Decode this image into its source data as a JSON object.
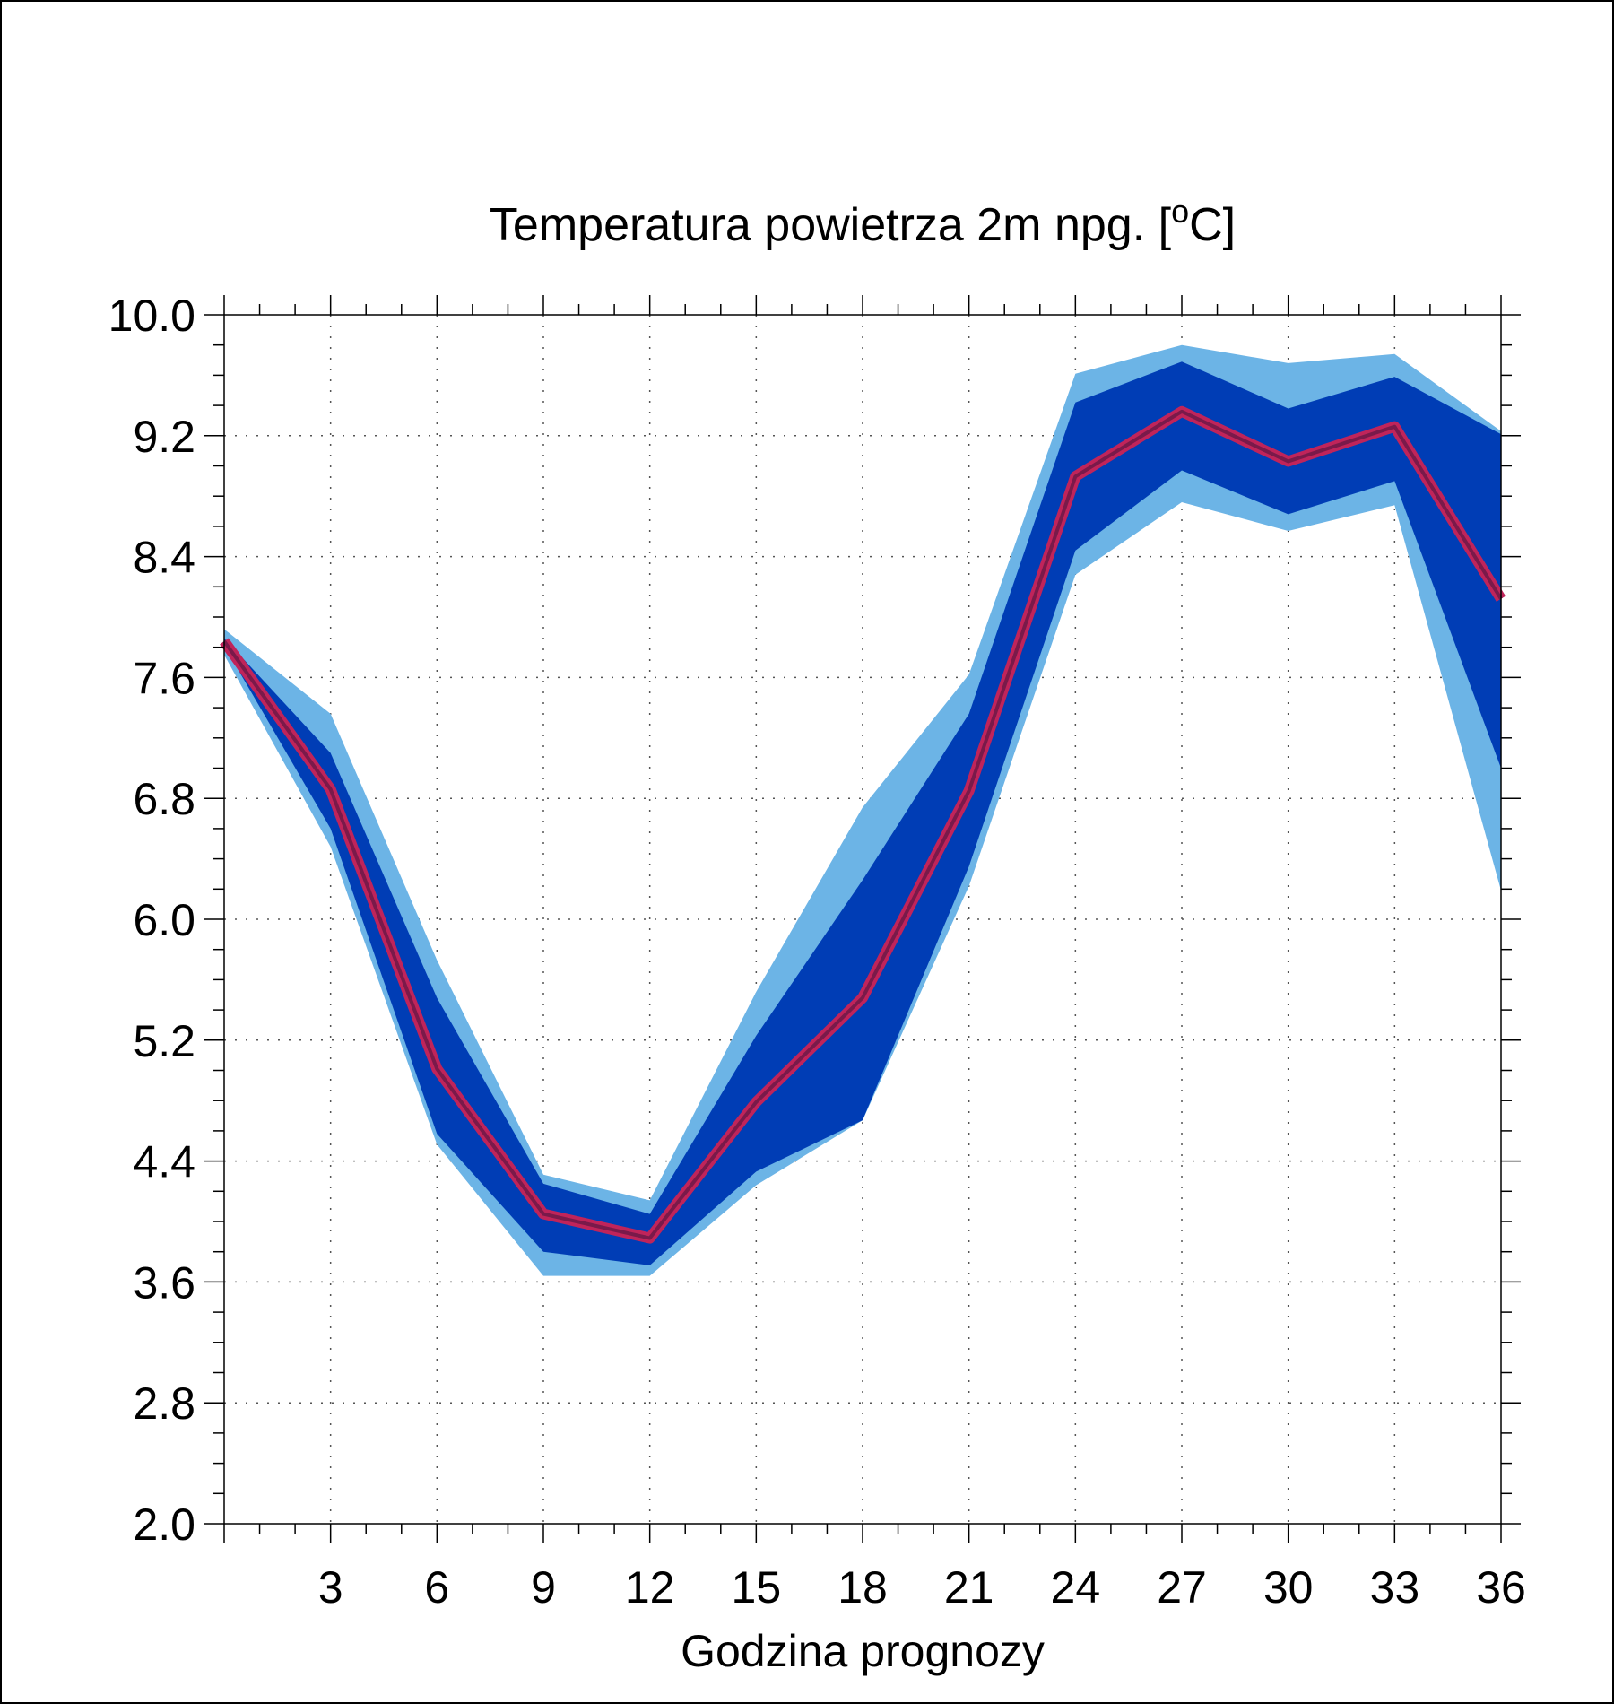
{
  "chart_data": {
    "type": "area",
    "title_main": "Temperatura powietrza 2m npg. [",
    "title_sup": "o",
    "title_end": "C]",
    "xlabel": "Godzina prognozy",
    "ylabel": "",
    "xlim": [
      0,
      36
    ],
    "ylim": [
      2.0,
      10.0
    ],
    "x_ticks": [
      3,
      6,
      9,
      12,
      15,
      18,
      21,
      24,
      27,
      30,
      33,
      36
    ],
    "x_tick_labels": [
      "3",
      "6",
      "9",
      "12",
      "15",
      "18",
      "21",
      "24",
      "27",
      "30",
      "33",
      "36"
    ],
    "y_ticks": [
      2.0,
      2.8,
      3.6,
      4.4,
      5.2,
      6.0,
      6.8,
      7.6,
      8.4,
      9.2,
      10.0
    ],
    "y_tick_labels": [
      "2.0",
      "2.8",
      "3.6",
      "4.4",
      "5.2",
      "6.0",
      "6.8",
      "7.6",
      "8.4",
      "9.2",
      "10.0"
    ],
    "grid": true,
    "x": [
      0,
      3,
      6,
      9,
      12,
      15,
      18,
      21,
      24,
      27,
      30,
      33,
      36
    ],
    "series": [
      {
        "role": "outer-band",
        "color": "#6cb4e6",
        "upper": [
          7.92,
          7.36,
          5.73,
          4.31,
          4.14,
          5.52,
          6.74,
          7.62,
          9.61,
          9.8,
          9.68,
          9.74,
          9.23
        ],
        "lower": [
          7.75,
          6.48,
          4.51,
          3.64,
          3.64,
          4.24,
          4.67,
          6.22,
          8.28,
          8.76,
          8.57,
          8.74,
          6.19
        ]
      },
      {
        "role": "inner-band",
        "color": "#003db5",
        "upper": [
          7.86,
          7.1,
          5.48,
          4.25,
          4.05,
          5.23,
          6.26,
          7.36,
          9.42,
          9.69,
          9.38,
          9.59,
          9.21
        ],
        "lower": [
          7.81,
          6.6,
          4.58,
          3.8,
          3.71,
          4.33,
          4.67,
          6.35,
          8.44,
          8.97,
          8.68,
          8.9,
          7.0
        ]
      },
      {
        "role": "median",
        "color": "#c0245a",
        "values": [
          7.84,
          6.86,
          5.01,
          4.05,
          3.89,
          4.79,
          5.48,
          6.85,
          8.93,
          9.36,
          9.03,
          9.26,
          8.12
        ]
      }
    ]
  }
}
